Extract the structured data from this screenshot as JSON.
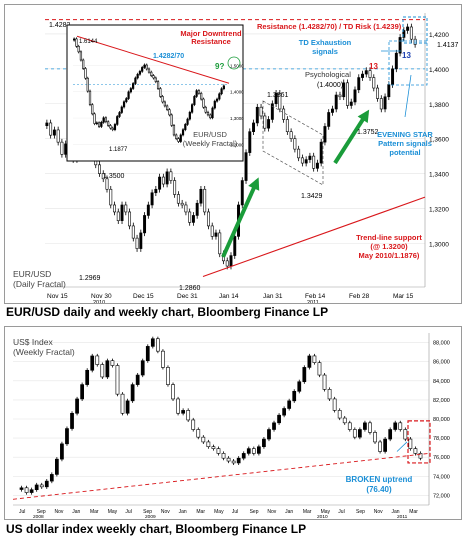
{
  "captions": {
    "top": "EUR/USD daily and weekly chart, Bloomberg Finance LP",
    "bottom": "US dollar index weekly chart, Bloomberg Finance LP"
  },
  "colors": {
    "up": "#000000",
    "down": "#ffffff",
    "green_arrow": "#1a9c3a",
    "red": "#d9171b",
    "blue": "#1b8fd6",
    "dashed_line": "#9bbad0"
  },
  "chart_data": [
    {
      "type": "candlestick",
      "title": "EUR/USD (Daily Fractal)",
      "x_ticks": [
        "Nov 15",
        "Nov 30",
        "Dec 15",
        "Dec 31",
        "Jan 14",
        "Jan 31",
        "Feb 14",
        "Feb 28",
        "Mar 15"
      ],
      "x_years": [
        "2010",
        "2011"
      ],
      "y_ticks": [
        "1,4200",
        "1,4000",
        "1,3800",
        "1,3600",
        "1,3400",
        "1,3200",
        "1,3000"
      ],
      "ylim": [
        1.275,
        1.432
      ],
      "price_labels": [
        "1.4282",
        "1.3500",
        "1.2969",
        "1.2860",
        "1.3861",
        "1.3429",
        "1.3752",
        "(1.4000)",
        "1.4137"
      ],
      "annotations": {
        "resistance": "Resistance (1.4282/70) / TD Risk (1.4239)",
        "td_exhaustion": "TD Exhaustion signals",
        "psychological": "Psychological",
        "evening_star": "EVENING STAR Pattern signals potential exhaustion",
        "trendline": "Trend-line support (@ 1.3200) May 2010/1.1876)",
        "count13a": "13",
        "count13b": "13"
      },
      "closes": [
        1.369,
        1.362,
        1.365,
        1.358,
        1.351,
        1.357,
        1.35,
        1.348,
        1.361,
        1.366,
        1.373,
        1.356,
        1.352,
        1.345,
        1.34,
        1.337,
        1.331,
        1.322,
        1.318,
        1.313,
        1.322,
        1.318,
        1.31,
        1.303,
        1.297,
        1.306,
        1.316,
        1.322,
        1.329,
        1.331,
        1.338,
        1.334,
        1.341,
        1.336,
        1.328,
        1.323,
        1.322,
        1.318,
        1.312,
        1.316,
        1.323,
        1.331,
        1.318,
        1.31,
        1.304,
        1.306,
        1.294,
        1.29,
        1.287,
        1.293,
        1.304,
        1.322,
        1.336,
        1.352,
        1.364,
        1.369,
        1.378,
        1.373,
        1.366,
        1.371,
        1.38,
        1.386,
        1.377,
        1.371,
        1.364,
        1.36,
        1.354,
        1.349,
        1.346,
        1.348,
        1.35,
        1.343,
        1.346,
        1.358,
        1.367,
        1.375,
        1.377,
        1.385,
        1.384,
        1.392,
        1.379,
        1.381,
        1.388,
        1.395,
        1.397,
        1.399,
        1.395,
        1.389,
        1.383,
        1.377,
        1.384,
        1.391,
        1.4,
        1.409,
        1.418,
        1.422,
        1.424,
        1.417,
        1.414
      ]
    },
    {
      "type": "candlestick",
      "title": "EUR/USD (Weekly Fractal)",
      "y_ticks": [
        "1,5000",
        "1,4000",
        "1,3000",
        "1,2000"
      ],
      "ylim": [
        1.16,
        1.63
      ],
      "price_labels": [
        "1.6144",
        "1.1877",
        "1.4282/70"
      ],
      "annotations": {
        "downtrend": "Major Downtrend Resistance",
        "nine": "9?"
      },
      "closes": [
        1.6,
        1.572,
        1.551,
        1.52,
        1.488,
        1.451,
        1.402,
        1.351,
        1.316,
        1.279,
        1.282,
        1.268,
        1.284,
        1.301,
        1.286,
        1.272,
        1.262,
        1.256,
        1.276,
        1.306,
        1.321,
        1.342,
        1.362,
        1.374,
        1.399,
        1.412,
        1.431,
        1.452,
        1.466,
        1.477,
        1.492,
        1.501,
        1.486,
        1.474,
        1.461,
        1.452,
        1.438,
        1.412,
        1.382,
        1.361,
        1.346,
        1.332,
        1.312,
        1.272,
        1.236,
        1.222,
        1.211,
        1.236,
        1.256,
        1.276,
        1.296,
        1.322,
        1.351,
        1.382,
        1.404,
        1.394,
        1.372,
        1.341,
        1.322,
        1.312,
        1.301,
        1.338,
        1.364,
        1.372,
        1.392,
        1.411,
        1.422
      ]
    },
    {
      "type": "candlestick",
      "title": "US$ Index (Weekly Fractal)",
      "y_ticks": [
        "88,000",
        "86,000",
        "84,000",
        "82,000",
        "80,000",
        "78,000",
        "76,000",
        "74,000",
        "72,000"
      ],
      "x_ticks": [
        "Jul",
        "Sep",
        "Nov",
        "Jan",
        "Mar",
        "May",
        "Jul",
        "Sep",
        "Nov",
        "Jan",
        "Mar",
        "May",
        "Jul",
        "Sep",
        "Nov",
        "Jan",
        "Mar",
        "May",
        "Jul",
        "Sep",
        "Nov",
        "Jan",
        "Mar"
      ],
      "x_years": [
        "2008",
        "2009",
        "2010",
        "2011"
      ],
      "ylim": [
        71,
        89
      ],
      "annotations": {
        "broken": "BROKEN uptrend (76.40)"
      },
      "closes": [
        72.8,
        72.3,
        72.6,
        73.1,
        72.9,
        73.5,
        74.2,
        75.8,
        77.4,
        79.0,
        80.6,
        82.1,
        83.6,
        85.1,
        86.6,
        85.7,
        84.4,
        86.1,
        85.6,
        82.6,
        80.6,
        81.9,
        83.6,
        84.6,
        86.1,
        87.6,
        88.4,
        87.1,
        85.4,
        83.6,
        82.1,
        80.6,
        80.9,
        79.9,
        78.9,
        78.1,
        77.6,
        77.1,
        76.9,
        76.4,
        75.9,
        75.6,
        75.4,
        75.9,
        76.4,
        76.9,
        76.4,
        77.1,
        77.9,
        78.9,
        79.6,
        80.4,
        81.1,
        81.9,
        82.9,
        83.9,
        85.4,
        86.6,
        85.9,
        84.6,
        83.1,
        82.1,
        80.9,
        80.1,
        79.6,
        78.9,
        78.1,
        78.9,
        79.6,
        78.6,
        77.6,
        76.6,
        77.9,
        78.9,
        79.6,
        78.9,
        77.9,
        76.9,
        76.4,
        75.9
      ]
    }
  ]
}
